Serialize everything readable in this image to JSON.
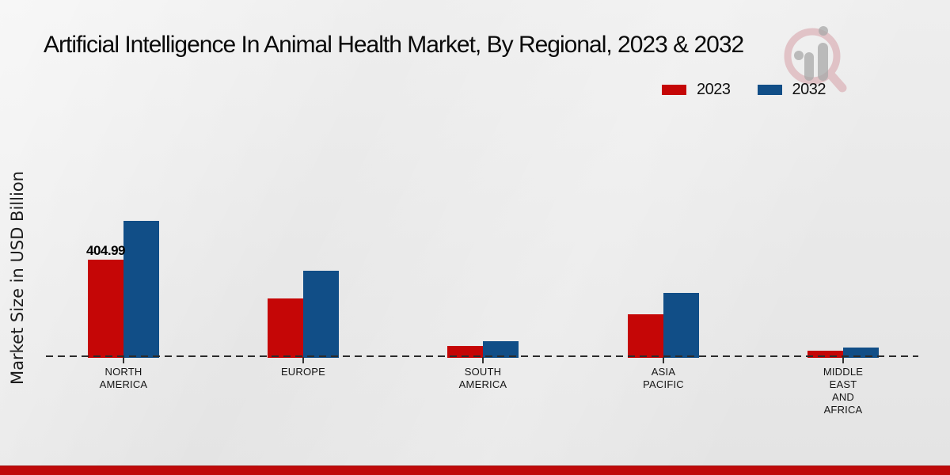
{
  "title": "Artificial Intelligence In Animal Health Market, By Regional, 2023 & 2032",
  "y_axis_label": "Market Size in USD Billion",
  "legend": {
    "position": "top-right",
    "items": [
      {
        "label": "2023",
        "color": "#c50606"
      },
      {
        "label": "2032",
        "color": "#114e87"
      }
    ]
  },
  "watermark_icon": "magnifier-bar-chart-logo",
  "colors": {
    "bar_2023": "#c50606",
    "bar_2032": "#114e87",
    "footer_band": "#bf0a0a",
    "background": "#e9e9e9",
    "baseline": "#2b2b2b"
  },
  "chart_data": {
    "type": "bar",
    "title": "Artificial Intelligence In Animal Health Market, By Regional, 2023 & 2032",
    "xlabel": "",
    "ylabel": "Market Size in USD Billion",
    "grid": false,
    "baseline_style": "dashed",
    "legend_position": "top-right",
    "ylim": [
      0,
      620
    ],
    "categories": [
      "NORTH AMERICA",
      "EUROPE",
      "SOUTH AMERICA",
      "ASIA PACIFIC",
      "MIDDLE EAST AND AFRICA"
    ],
    "category_label_lines": [
      [
        "NORTH",
        "AMERICA"
      ],
      [
        "EUROPE"
      ],
      [
        "SOUTH",
        "AMERICA"
      ],
      [
        "ASIA",
        "PACIFIC"
      ],
      [
        "MIDDLE",
        "EAST",
        "AND",
        "AFRICA"
      ]
    ],
    "series": [
      {
        "name": "2023",
        "color": "#c50606",
        "values": [
          404.99,
          245,
          49,
          180,
          29
        ]
      },
      {
        "name": "2032",
        "color": "#114e87",
        "values": [
          565,
          359,
          69,
          268,
          42
        ]
      }
    ],
    "value_labels": [
      {
        "series": "2023",
        "category": "NORTH AMERICA",
        "text": "404.99"
      }
    ]
  }
}
